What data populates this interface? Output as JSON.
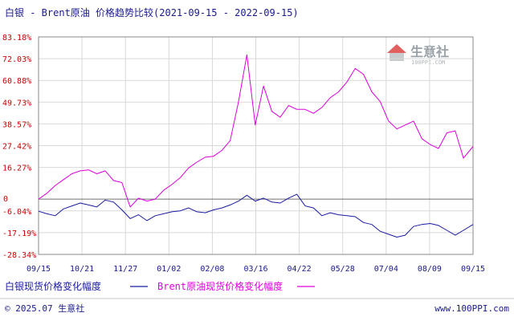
{
  "header": {
    "title": "白银 - Brent原油 价格趋势比较(2021-09-15 - 2022-09-15)"
  },
  "watermark": {
    "name": "生意社",
    "url": "100PPI.COM"
  },
  "footer": {
    "left": "© 2025.07 生意社",
    "right": "www.100PPI.com"
  },
  "colors": {
    "silver": "#1a1aa0",
    "brent": "#dd00dd",
    "axis_text_y": "#cc0000",
    "axis_text_x": "#1a1a8c",
    "grid": "#d8d8d8"
  },
  "chart_data": {
    "type": "line",
    "title": "白银 - Brent原油 价格趋势比较(2021-09-15 - 2022-09-15)",
    "x_ticks": [
      "09/15",
      "10/21",
      "11/27",
      "01/02",
      "02/08",
      "03/16",
      "04/22",
      "05/28",
      "07/04",
      "08/09",
      "09/15"
    ],
    "y_ticks": [
      "83.18%",
      "72.03%",
      "60.88%",
      "49.73%",
      "38.57%",
      "27.42%",
      "16.27%",
      "0",
      "-6.04%",
      "-17.19%",
      "-28.34%"
    ],
    "ylim": [
      -28.34,
      83.18
    ],
    "grid": true,
    "legend_position": "bottom-left",
    "series": [
      {
        "name": "白银现货价格变化幅度",
        "color": "#1a1aa0",
        "points": [
          [
            "2021-09-15",
            -6.2
          ],
          [
            "2021-09-22",
            -7.5
          ],
          [
            "2021-09-29",
            -8.5
          ],
          [
            "2021-10-06",
            -5.0
          ],
          [
            "2021-10-13",
            -3.5
          ],
          [
            "2021-10-20",
            -2.0
          ],
          [
            "2021-10-27",
            -3.0
          ],
          [
            "2021-11-03",
            -4.0
          ],
          [
            "2021-11-10",
            -0.5
          ],
          [
            "2021-11-17",
            -1.5
          ],
          [
            "2021-11-24",
            -5.5
          ],
          [
            "2021-12-01",
            -10.0
          ],
          [
            "2021-12-08",
            -8.0
          ],
          [
            "2021-12-15",
            -11.0
          ],
          [
            "2021-12-22",
            -8.5
          ],
          [
            "2021-12-29",
            -7.5
          ],
          [
            "2022-01-05",
            -6.5
          ],
          [
            "2022-01-12",
            -6.0
          ],
          [
            "2022-01-19",
            -4.5
          ],
          [
            "2022-01-26",
            -6.5
          ],
          [
            "2022-02-02",
            -7.0
          ],
          [
            "2022-02-09",
            -5.5
          ],
          [
            "2022-02-16",
            -4.5
          ],
          [
            "2022-02-23",
            -3.0
          ],
          [
            "2022-03-02",
            -1.0
          ],
          [
            "2022-03-09",
            2.0
          ],
          [
            "2022-03-16",
            -1.0
          ],
          [
            "2022-03-23",
            0.5
          ],
          [
            "2022-03-30",
            -1.5
          ],
          [
            "2022-04-06",
            -2.0
          ],
          [
            "2022-04-13",
            0.5
          ],
          [
            "2022-04-20",
            2.5
          ],
          [
            "2022-04-27",
            -3.5
          ],
          [
            "2022-05-04",
            -4.5
          ],
          [
            "2022-05-11",
            -8.5
          ],
          [
            "2022-05-18",
            -7.0
          ],
          [
            "2022-05-25",
            -8.0
          ],
          [
            "2022-06-01",
            -8.5
          ],
          [
            "2022-06-08",
            -9.0
          ],
          [
            "2022-06-15",
            -12.0
          ],
          [
            "2022-06-22",
            -13.0
          ],
          [
            "2022-06-29",
            -16.5
          ],
          [
            "2022-07-06",
            -18.0
          ],
          [
            "2022-07-13",
            -19.5
          ],
          [
            "2022-07-20",
            -18.5
          ],
          [
            "2022-07-27",
            -14.0
          ],
          [
            "2022-08-03",
            -13.0
          ],
          [
            "2022-08-10",
            -12.5
          ],
          [
            "2022-08-17",
            -13.5
          ],
          [
            "2022-08-24",
            -16.0
          ],
          [
            "2022-08-31",
            -18.5
          ],
          [
            "2022-09-07",
            -16.0
          ],
          [
            "2022-09-15",
            -13.0
          ]
        ]
      },
      {
        "name": "Brent原油现货价格变化幅度",
        "color": "#dd00dd",
        "points": [
          [
            "2021-09-15",
            0.0
          ],
          [
            "2021-09-22",
            3.0
          ],
          [
            "2021-09-29",
            7.0
          ],
          [
            "2021-10-06",
            10.0
          ],
          [
            "2021-10-13",
            13.0
          ],
          [
            "2021-10-20",
            14.5
          ],
          [
            "2021-10-27",
            15.0
          ],
          [
            "2021-11-03",
            13.0
          ],
          [
            "2021-11-10",
            14.5
          ],
          [
            "2021-11-17",
            9.5
          ],
          [
            "2021-11-24",
            8.5
          ],
          [
            "2021-12-01",
            -4.0
          ],
          [
            "2021-12-08",
            0.5
          ],
          [
            "2021-12-15",
            -1.0
          ],
          [
            "2021-12-22",
            0.0
          ],
          [
            "2021-12-29",
            4.5
          ],
          [
            "2022-01-05",
            7.5
          ],
          [
            "2022-01-12",
            11.0
          ],
          [
            "2022-01-19",
            16.0
          ],
          [
            "2022-01-26",
            19.0
          ],
          [
            "2022-02-02",
            21.5
          ],
          [
            "2022-02-09",
            22.0
          ],
          [
            "2022-02-16",
            25.0
          ],
          [
            "2022-02-23",
            30.0
          ],
          [
            "2022-03-02",
            50.0
          ],
          [
            "2022-03-09",
            74.0
          ],
          [
            "2022-03-16",
            38.0
          ],
          [
            "2022-03-23",
            58.0
          ],
          [
            "2022-03-30",
            45.0
          ],
          [
            "2022-04-06",
            42.0
          ],
          [
            "2022-04-13",
            48.0
          ],
          [
            "2022-04-20",
            46.0
          ],
          [
            "2022-04-27",
            46.0
          ],
          [
            "2022-05-04",
            44.0
          ],
          [
            "2022-05-11",
            47.0
          ],
          [
            "2022-05-18",
            52.0
          ],
          [
            "2022-05-25",
            55.0
          ],
          [
            "2022-06-01",
            60.0
          ],
          [
            "2022-06-08",
            67.0
          ],
          [
            "2022-06-15",
            64.0
          ],
          [
            "2022-06-22",
            55.0
          ],
          [
            "2022-06-29",
            50.0
          ],
          [
            "2022-07-06",
            40.0
          ],
          [
            "2022-07-13",
            36.0
          ],
          [
            "2022-07-20",
            38.0
          ],
          [
            "2022-07-27",
            40.0
          ],
          [
            "2022-08-03",
            31.0
          ],
          [
            "2022-08-10",
            28.0
          ],
          [
            "2022-08-17",
            26.0
          ],
          [
            "2022-08-24",
            34.0
          ],
          [
            "2022-08-31",
            35.0
          ],
          [
            "2022-09-07",
            21.0
          ],
          [
            "2022-09-15",
            27.0
          ]
        ]
      }
    ]
  }
}
